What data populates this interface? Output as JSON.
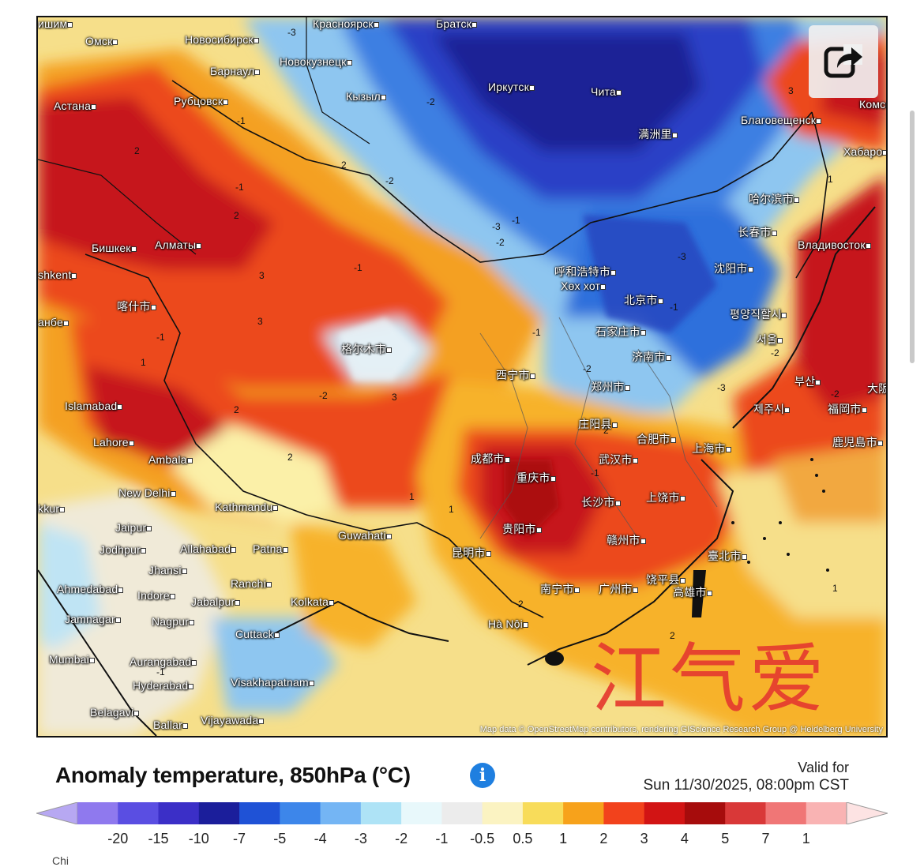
{
  "map": {
    "cities": [
      {
        "label": "Омск"
      },
      {
        "label": "Новосибирск"
      },
      {
        "label": "Барнаул"
      },
      {
        "label": "Новокузнецк"
      },
      {
        "label": "Астана"
      },
      {
        "label": "Рубцовск"
      },
      {
        "label": "Кызыл"
      },
      {
        "label": "Красноярск"
      },
      {
        "label": "Братск"
      },
      {
        "label": "Иркутск"
      },
      {
        "label": "Чита"
      },
      {
        "label": "Благовещенск"
      },
      {
        "label": "Хабаро"
      },
      {
        "label": "Комс"
      },
      {
        "label": "满洲里"
      },
      {
        "label": "哈尔滨市"
      },
      {
        "label": "长春市"
      },
      {
        "label": "Владивосток"
      },
      {
        "label": "沈阳市"
      },
      {
        "label": "Бишкек"
      },
      {
        "label": "Алматы"
      },
      {
        "label": "shkent"
      },
      {
        "label": "喀什市"
      },
      {
        "label": "анбе"
      },
      {
        "label": "呼和浩特市"
      },
      {
        "label": "Хөх хот"
      },
      {
        "label": "北京市"
      },
      {
        "label": "평양직할시"
      },
      {
        "label": "石家庄市"
      },
      {
        "label": "서울"
      },
      {
        "label": "济南市"
      },
      {
        "label": "格尔木市"
      },
      {
        "label": "Islamabad"
      },
      {
        "label": "Lahore"
      },
      {
        "label": "Ambala"
      },
      {
        "label": "西宁市"
      },
      {
        "label": "郑州市"
      },
      {
        "label": "부산"
      },
      {
        "label": "大阪"
      },
      {
        "label": "福岡市"
      },
      {
        "label": "제주시"
      },
      {
        "label": "庄阳县"
      },
      {
        "label": "合肥市"
      },
      {
        "label": "上海市"
      },
      {
        "label": "武汉市"
      },
      {
        "label": "成都市"
      },
      {
        "label": "重庆市"
      },
      {
        "label": "鹿児島市"
      },
      {
        "label": "New Delhi"
      },
      {
        "label": "Kathmandu"
      },
      {
        "label": "长沙市"
      },
      {
        "label": "上饶市"
      },
      {
        "label": "Jaipur"
      },
      {
        "label": "Guwahati"
      },
      {
        "label": "贵阳市"
      },
      {
        "label": "kkur"
      },
      {
        "label": "Jodhpur"
      },
      {
        "label": "Allahabad"
      },
      {
        "label": "Patna"
      },
      {
        "label": "赣州市"
      },
      {
        "label": "昆明市"
      },
      {
        "label": "臺北市"
      },
      {
        "label": "Jhansi"
      },
      {
        "label": "Ranchi"
      },
      {
        "label": "Ahmedabad"
      },
      {
        "label": "Indore"
      },
      {
        "label": "南宁市"
      },
      {
        "label": "广州市"
      },
      {
        "label": "饶平县"
      },
      {
        "label": "高雄市"
      },
      {
        "label": "Jabalpur"
      },
      {
        "label": "Jamnagar"
      },
      {
        "label": "Kolkata"
      },
      {
        "label": "Nagpur"
      },
      {
        "label": "Hà Nội"
      },
      {
        "label": "Cuttack"
      },
      {
        "label": "Mumbai"
      },
      {
        "label": "Aurangabad"
      },
      {
        "label": "Hyderabad"
      },
      {
        "label": "Visakhapatnam"
      },
      {
        "label": "Belagavi"
      },
      {
        "label": "Ballar"
      },
      {
        "label": "Vijayawada"
      },
      {
        "label": "ишим"
      }
    ],
    "iso_labels": [
      "-3",
      "-2",
      "-1",
      "2",
      "3",
      "-2",
      "-3",
      "-1",
      "2",
      "1",
      "3",
      "-2",
      "-1",
      "-3",
      "2",
      "1",
      "-1",
      "-2",
      "2",
      "3",
      "-1",
      "2",
      "1",
      "-1",
      "-2",
      "-3",
      "2",
      "-2",
      "-1",
      "3",
      "1",
      "-1",
      "2",
      "-1",
      "-2",
      "1",
      "2",
      "-1"
    ],
    "attribution": "Map data © OpenStreetMap contributors, rendering GIScience Research Group @ Heidelberg University",
    "watermark": "江气爱"
  },
  "legend": {
    "title": "Anomaly temperature, 850hPa (°C)",
    "valid_label": "Valid for",
    "valid_date": "Sun 11/30/2025, 08:00pm CST",
    "tick_labels": [
      "-20",
      "-15",
      "-10",
      "-7",
      "-5",
      "-4",
      "-3",
      "-2",
      "-1",
      "-0.5",
      "0.5",
      "1",
      "2",
      "3",
      "4",
      "5",
      "7",
      "1"
    ],
    "colors": [
      "#b7a8f2",
      "#8f79ee",
      "#5a4ee2",
      "#3b2fc7",
      "#1b1e9b",
      "#1f52d6",
      "#3d86ea",
      "#74b5f4",
      "#aee3f6",
      "#e8f8fb",
      "#ececec",
      "#fbf3c2",
      "#f8dc5a",
      "#f7a21b",
      "#f2421c",
      "#d21414",
      "#a60c0c",
      "#d93838",
      "#f07676",
      "#f9b3b3",
      "#fde3e3"
    ]
  },
  "ui": {
    "share_icon": "share-arrow-icon",
    "info_icon": "info-icon",
    "info_glyph": "i",
    "bottom_cut_text": "Chi"
  }
}
